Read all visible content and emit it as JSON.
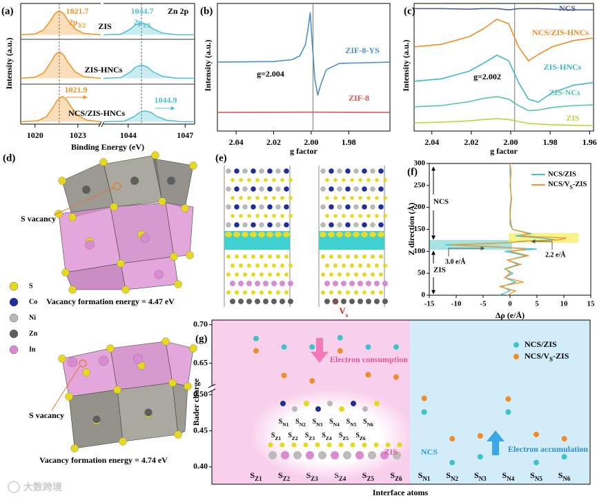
{
  "chart_data": [
    {
      "label": "(a)",
      "type": "line",
      "title": "Zn 2p",
      "xlabel": "Binding Energy (eV)",
      "ylabel": "Intensity (a.u.)",
      "xlim": [
        1019,
        1047.5
      ],
      "xbreak": [
        1024.6,
        1042.7
      ],
      "xticks": [
        1020,
        1023,
        1044,
        1047
      ],
      "ylim": [
        0,
        100
      ],
      "peak_lines": [
        1021.7,
        1044.7
      ],
      "peak_names": [
        "2p3/2",
        "2p1/2"
      ],
      "shift_labels": [
        1021.9,
        1044.9
      ],
      "series": [
        {
          "name": "ZIS",
          "segments": [
            {
              "color": "#f0921f",
              "x": [
                1019,
                1020,
                1020.6,
                1021.1,
                1021.4,
                1021.7,
                1022,
                1022.3,
                1022.8,
                1023.4,
                1024.6
              ],
              "values": [
                74,
                74.8,
                78,
                86,
                91.6,
                94,
                91.6,
                86,
                79,
                75.2,
                74
              ]
            },
            {
              "color": "#4dbfd0",
              "x": [
                1042.7,
                1043.6,
                1044.1,
                1044.4,
                1044.7,
                1045,
                1045.3,
                1045.8,
                1046.5,
                1047.5
              ],
              "values": [
                74,
                74.5,
                78.5,
                82.5,
                84,
                82.5,
                79,
                75.5,
                74.2,
                74
              ]
            }
          ]
        },
        {
          "name": "ZIS-HNCs",
          "segments": [
            {
              "color": "#f0921f",
              "x": [
                1019,
                1020,
                1020.6,
                1021.1,
                1021.4,
                1021.7,
                1022,
                1022.3,
                1022.8,
                1023.4,
                1024.6
              ],
              "values": [
                38,
                38.9,
                42.4,
                51.2,
                57.4,
                60,
                57.4,
                51.2,
                43.5,
                39.3,
                38
              ]
            },
            {
              "color": "#4dbfd0",
              "x": [
                1042.7,
                1043.6,
                1044.1,
                1044.4,
                1044.7,
                1045,
                1045.3,
                1045.8,
                1046.5,
                1047.5
              ],
              "values": [
                38,
                38.6,
                43,
                47.4,
                49,
                47.4,
                43.5,
                39.7,
                38.2,
                38
              ]
            }
          ]
        },
        {
          "name": "NCS/ZIS-HNCs",
          "segments": [
            {
              "color": "#f0921f",
              "x": [
                1019,
                1020.2,
                1020.8,
                1021.3,
                1021.6,
                1021.9,
                1022.2,
                1022.5,
                1023,
                1023.6,
                1024.6
              ],
              "values": [
                2,
                2.8,
                6.2,
                14.6,
                20.5,
                23,
                20.5,
                14.6,
                7.3,
                3.3,
                2
              ]
            },
            {
              "color": "#4dbfd0",
              "x": [
                1042.7,
                1043.8,
                1044.3,
                1044.6,
                1044.9,
                1045.2,
                1045.5,
                1046,
                1046.7,
                1047.5
              ],
              "values": [
                2,
                2.5,
                6.1,
                9.7,
                11,
                9.7,
                6.5,
                3.4,
                2.2,
                2
              ]
            }
          ]
        }
      ]
    },
    {
      "label": "(b)",
      "type": "line",
      "xlabel": "g factor",
      "ylabel": "Intensity (a.u.)",
      "xlim": [
        2.05,
        1.958
      ],
      "xticks": [
        2.04,
        2.02,
        {
          "value": 2,
          "label": "2.00"
        },
        1.98
      ],
      "ylim": [
        0,
        100
      ],
      "vline": 1.999,
      "annotation": "g=2.004",
      "series": [
        {
          "name": "ZIF-8-YS",
          "color": "#4a8fc9",
          "x": [
            2.05,
            2.02,
            2.01,
            2.006,
            2.003,
            2.0015,
            2.0005,
            1.9995,
            1.998,
            1.9965,
            1.995,
            1.992,
            1.985,
            1.958
          ],
          "values": [
            54,
            54.5,
            56,
            59,
            68,
            82,
            93,
            70,
            40,
            28,
            36,
            48,
            53,
            54
          ]
        },
        {
          "name": "ZIF-8",
          "color": "#d9534f",
          "x": [
            2.05,
            2.0,
            1.958
          ],
          "values": [
            14.6,
            14.8,
            14.6
          ]
        }
      ]
    },
    {
      "label": "(c)",
      "type": "line",
      "xlabel": "g factor",
      "ylabel": "Intensity (a.u.)",
      "xlim": [
        2.049,
        1.958
      ],
      "xticks": [
        2.04,
        2.02,
        {
          "value": 2,
          "label": "2.00"
        },
        1.98,
        1.96
      ],
      "ylim": [
        0,
        100
      ],
      "vline": 1.998,
      "annotation": "g=2.002",
      "x": [
        2.049,
        2.035,
        2.021,
        2.014,
        2.007,
        2.001,
        1.996,
        1.991,
        1.986,
        1.979,
        1.968,
        1.958
      ],
      "series": [
        {
          "name": "NCS",
          "color": "#4b5ba8",
          "values": [
            96,
            96,
            95.5,
            96,
            96,
            95,
            96,
            96,
            96,
            95.5,
            95,
            95
          ]
        },
        {
          "name": "NCS/ZIS-HNCs",
          "color": "#f08c1e",
          "values": [
            66,
            68,
            74,
            80,
            87.6,
            84,
            66,
            55,
            60,
            66,
            71,
            73
          ]
        },
        {
          "name": "ZIS-HNCs",
          "color": "#3fb6cc",
          "values": [
            39,
            41,
            47,
            53,
            59.5,
            55,
            38,
            25,
            22.7,
            30,
            36,
            38
          ]
        },
        {
          "name": "ZIS-NCs",
          "color": "#52c5a5",
          "values": [
            19,
            20,
            23,
            25.5,
            27,
            25,
            20,
            16,
            16.5,
            18.5,
            20,
            20.5
          ]
        },
        {
          "name": "ZIS",
          "color": "#c2d23a",
          "values": [
            6.5,
            7,
            8,
            9,
            9.7,
            9,
            7.5,
            6,
            5.5,
            5,
            4.5,
            4.3
          ]
        }
      ]
    },
    {
      "label": "(f)",
      "type": "line",
      "xlabel": "Δρ (e/Å)",
      "ylabel": "Z direction (Å)",
      "xlim": [
        -15,
        15
      ],
      "xticks": [
        -15,
        -10,
        -5,
        0,
        5,
        10,
        15
      ],
      "ylim": [
        0,
        300
      ],
      "yticks": [
        0,
        50,
        100,
        150,
        200,
        250,
        300
      ],
      "annotations": [
        "NCS",
        "ZIS",
        "3.0 e/Å",
        "2.2 e/Å"
      ],
      "y": [
        0,
        10,
        20,
        30,
        40,
        50,
        60,
        70,
        80,
        90,
        100,
        105,
        110,
        115,
        118,
        120,
        123,
        126,
        130,
        135,
        140,
        150,
        160,
        180,
        200,
        220,
        250,
        280,
        300
      ],
      "series": [
        {
          "name": "NCS/ZIS",
          "color": "#46bfd6",
          "values": [
            -2,
            0,
            -1.5,
            1,
            -1,
            0.5,
            -1,
            1.5,
            -0.5,
            3,
            -1,
            5,
            -3,
            -12,
            -4,
            0,
            2,
            8.5,
            6,
            1,
            4,
            0.5,
            0.2,
            0,
            0,
            0.2,
            0.1,
            0,
            0
          ]
        },
        {
          "name": "NCS/VS-ZIS",
          "color": "#f29a2e",
          "values": [
            -0.5,
            1,
            -2,
            2.5,
            -1,
            0,
            -0.8,
            2,
            -0.5,
            3.5,
            0,
            3,
            -2,
            -11,
            -3,
            0,
            3,
            9,
            10.5,
            2,
            3.5,
            0.5,
            0,
            0,
            0.1,
            0.3,
            0,
            0.2,
            0
          ]
        }
      ]
    },
    {
      "label": "(g)",
      "type": "scatter",
      "xlabel": "Interface atoms",
      "ylabel": "Bader charge",
      "categories": [
        "SZ1",
        "SZ2",
        "SZ3",
        "SZ4",
        "SZ5",
        "SZ6",
        "SN1",
        "SN2",
        "SN3",
        "SN4",
        "SN5",
        "SN6"
      ],
      "ylim": [
        0.376,
        0.706
      ],
      "ybreak": [
        0.506,
        0.62
      ],
      "yticks": [
        {
          "value": 0.4,
          "label": "0.40"
        },
        0.45,
        {
          "value": 0.5,
          "label": "0.50"
        },
        0.65,
        {
          "value": 0.7,
          "label": "0.70"
        }
      ],
      "regions": [
        "ZIS",
        "NCS"
      ],
      "annotations": [
        "Electron consumption",
        "Electron accumulation"
      ],
      "series": [
        {
          "name": "NCS/ZIS",
          "color": "#3ec3cc",
          "values": [
            0.682,
            0.671,
            0.671,
            0.683,
            0.671,
            0.671,
            0.476,
            0.406,
            0.414,
            0.476,
            0.406,
            0.414
          ]
        },
        {
          "name": "NCS/VS-ZIS",
          "color": "#f08c28",
          "values": [
            0.666,
            0.634,
            0.627,
            0.666,
            0.635,
            0.632,
            0.495,
            0.439,
            0.443,
            0.494,
            0.445,
            0.439
          ]
        }
      ]
    }
  ],
  "structures": {
    "d": {
      "label": "(d)",
      "vacancy_labels": [
        "S vacancy",
        "S vacancy"
      ],
      "legend": [
        {
          "name": "S",
          "color": "#e6d81c"
        },
        {
          "name": "Co",
          "color": "#1f2f9a"
        },
        {
          "name": "Ni",
          "color": "#b8b8b8"
        },
        {
          "name": "Zn",
          "color": "#5e5e5e"
        },
        {
          "name": "In",
          "color": "#d98ad0"
        }
      ],
      "energies": [
        "Vacancy formation energy = 4.47 eV",
        "Vacancy formation energy = 4.74 eV"
      ]
    },
    "e": {
      "label": "(e)",
      "vacancy": "Vs"
    }
  },
  "watermark": "大数跨境"
}
